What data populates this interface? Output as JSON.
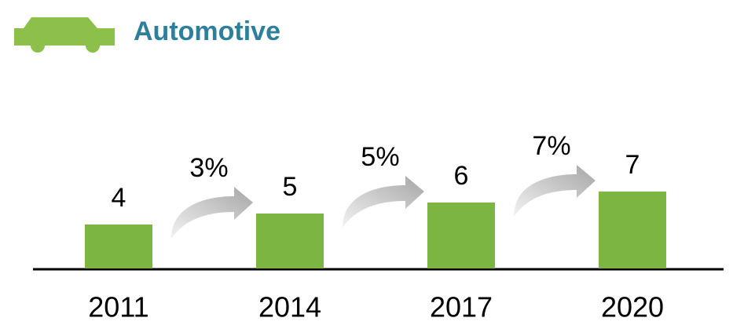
{
  "chart_data": {
    "type": "bar",
    "title": "Automotive",
    "categories": [
      "2011",
      "2014",
      "2017",
      "2020"
    ],
    "values": [
      4,
      5,
      6,
      7
    ],
    "color": "#7db543",
    "ylim": [
      0,
      10
    ],
    "growth": {
      "values": [
        3,
        5,
        7
      ],
      "value_labels": [
        "3%",
        "5%",
        "7%"
      ]
    }
  }
}
